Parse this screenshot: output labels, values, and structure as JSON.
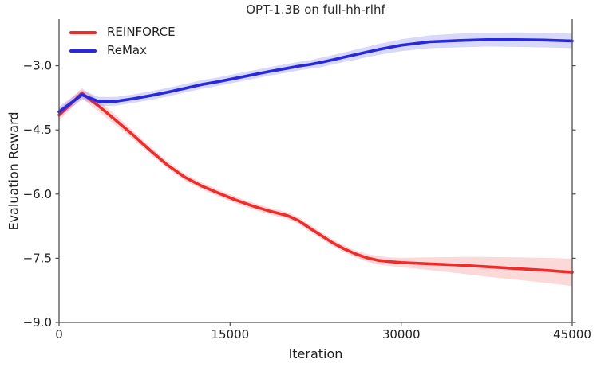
{
  "chart_data": {
    "type": "line",
    "title": "OPT-1.3B on full-hh-rlhf",
    "xlabel": "Iteration",
    "ylabel": "Evaluation Reward",
    "xlim": [
      0,
      45000
    ],
    "ylim": [
      -9.0,
      -1.91
    ],
    "grid": false,
    "legend_position": "upper-left",
    "band_opacity": 0.18,
    "axis_color": "#4d4d4d",
    "text_color": "#1f1f1f",
    "xticks": {
      "values": [
        0,
        15000,
        30000,
        45000
      ],
      "labels": [
        "0",
        "15000",
        "30000",
        "45000"
      ]
    },
    "yticks": {
      "values": [
        -3.0,
        -4.5,
        -6.0,
        -7.5,
        -9.0
      ],
      "labels": [
        "−3.0",
        "−4.5",
        "−6.0",
        "−7.5",
        "−9.0"
      ]
    },
    "x": [
      0,
      1000,
      2000,
      3500,
      5000,
      6500,
      8000,
      9500,
      11000,
      12500,
      14000,
      15500,
      17000,
      18500,
      20000,
      21000,
      22000,
      23000,
      24000,
      25000,
      26000,
      27000,
      28000,
      29000,
      30000,
      32500,
      35000,
      37500,
      40000,
      42500,
      45000
    ],
    "series": [
      {
        "name": "REINFORCE",
        "color": "#ee2c2c",
        "values": [
          -4.15,
          -3.9,
          -3.64,
          -3.95,
          -4.28,
          -4.62,
          -4.98,
          -5.32,
          -5.6,
          -5.81,
          -5.98,
          -6.14,
          -6.28,
          -6.4,
          -6.5,
          -6.62,
          -6.8,
          -6.97,
          -7.14,
          -7.28,
          -7.4,
          -7.49,
          -7.55,
          -7.58,
          -7.6,
          -7.63,
          -7.66,
          -7.7,
          -7.74,
          -7.78,
          -7.83
        ],
        "band": [
          0.14,
          0.12,
          0.12,
          0.13,
          0.12,
          0.1,
          0.09,
          0.08,
          0.08,
          0.08,
          0.08,
          0.08,
          0.08,
          0.08,
          0.08,
          0.08,
          0.08,
          0.08,
          0.08,
          0.08,
          0.08,
          0.09,
          0.1,
          0.1,
          0.11,
          0.15,
          0.19,
          0.23,
          0.26,
          0.29,
          0.32
        ]
      },
      {
        "name": "ReMax",
        "color": "#2828dc",
        "values": [
          -4.08,
          -3.88,
          -3.68,
          -3.84,
          -3.83,
          -3.77,
          -3.7,
          -3.62,
          -3.53,
          -3.44,
          -3.37,
          -3.29,
          -3.21,
          -3.13,
          -3.06,
          -3.01,
          -2.97,
          -2.92,
          -2.86,
          -2.8,
          -2.74,
          -2.68,
          -2.62,
          -2.57,
          -2.52,
          -2.44,
          -2.41,
          -2.39,
          -2.39,
          -2.4,
          -2.42
        ],
        "band": [
          0.13,
          0.12,
          0.11,
          0.11,
          0.1,
          0.1,
          0.1,
          0.1,
          0.1,
          0.1,
          0.1,
          0.1,
          0.1,
          0.1,
          0.1,
          0.1,
          0.1,
          0.11,
          0.11,
          0.11,
          0.12,
          0.12,
          0.13,
          0.13,
          0.14,
          0.15,
          0.16,
          0.16,
          0.17,
          0.17,
          0.17
        ]
      }
    ]
  }
}
